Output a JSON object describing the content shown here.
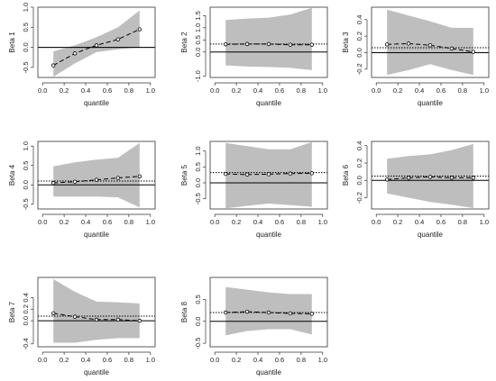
{
  "figure": {
    "background": "#ffffff",
    "band_color": "#bebebe",
    "line_color": "#000000"
  },
  "chart_data": [
    {
      "type": "line",
      "ylabel": "Beta 1",
      "xlabel": "quantile",
      "xlim": [
        0,
        1
      ],
      "ylim": [
        -0.75,
        1.0
      ],
      "xticks": [
        "0.0",
        "0.2",
        "0.4",
        "0.6",
        "0.8",
        "1.0"
      ],
      "yticks": [
        -0.5,
        0.0,
        0.5,
        1.0
      ],
      "ytick_labels": [
        "-0.5",
        "0.0",
        "0.5",
        "1.0"
      ],
      "x": [
        0.1,
        0.3,
        0.5,
        0.7,
        0.9
      ],
      "estimate": [
        -0.45,
        -0.15,
        0.05,
        0.2,
        0.45
      ],
      "band_lower": [
        -0.73,
        -0.4,
        -0.12,
        -0.05,
        0.0
      ],
      "band_upper": [
        -0.1,
        0.05,
        0.25,
        0.5,
        0.92
      ],
      "ols_estimate": 0.0,
      "zero_line": 0.0
    },
    {
      "type": "line",
      "ylabel": "Beta 2",
      "xlabel": "quantile",
      "xlim": [
        0,
        1
      ],
      "ylim": [
        -1.05,
        1.85
      ],
      "xticks": [
        "0.0",
        "0.2",
        "0.4",
        "0.6",
        "0.8",
        "1.0"
      ],
      "yticks": [
        -1.0,
        0.0,
        0.5,
        1.0,
        1.5
      ],
      "ytick_labels": [
        "-1.0",
        "0.0",
        "0.5",
        "1.0",
        "1.5"
      ],
      "x": [
        0.1,
        0.3,
        0.5,
        0.7,
        0.9
      ],
      "estimate": [
        0.32,
        0.33,
        0.33,
        0.3,
        0.3
      ],
      "band_lower": [
        -0.55,
        -0.6,
        -0.62,
        -0.65,
        -0.75
      ],
      "band_upper": [
        1.32,
        1.38,
        1.42,
        1.55,
        1.82
      ],
      "ols_estimate": 0.33,
      "zero_line": 0.0
    },
    {
      "type": "line",
      "ylabel": "Beta 3",
      "xlabel": "quantile",
      "xlim": [
        0,
        1
      ],
      "ylim": [
        -0.3,
        0.55
      ],
      "xticks": [
        "0.0",
        "0.2",
        "0.4",
        "0.6",
        "0.8",
        "1.0"
      ],
      "yticks": [
        -0.2,
        0.0,
        0.2,
        0.4
      ],
      "ytick_labels": [
        "-0.2",
        "0.0",
        "0.2",
        "0.4"
      ],
      "x": [
        0.1,
        0.3,
        0.5,
        0.7,
        0.9
      ],
      "estimate": [
        0.1,
        0.11,
        0.09,
        0.05,
        0.01
      ],
      "band_lower": [
        -0.27,
        -0.21,
        -0.14,
        -0.21,
        -0.27
      ],
      "band_upper": [
        0.52,
        0.45,
        0.38,
        0.3,
        0.3
      ],
      "ols_estimate": 0.06,
      "zero_line": 0.0
    },
    {
      "type": "line",
      "ylabel": "Beta 4",
      "xlabel": "quantile",
      "xlim": [
        0,
        1
      ],
      "ylim": [
        -0.62,
        1.12
      ],
      "xticks": [
        "0.0",
        "0.2",
        "0.4",
        "0.6",
        "0.8",
        "1.0"
      ],
      "yticks": [
        -0.5,
        0.0,
        0.5,
        1.0
      ],
      "ytick_labels": [
        "-0.5",
        "0.0",
        "0.5",
        "1.0"
      ],
      "x": [
        0.1,
        0.3,
        0.5,
        0.7,
        0.9
      ],
      "estimate": [
        0.05,
        0.08,
        0.13,
        0.18,
        0.22
      ],
      "band_lower": [
        -0.3,
        -0.3,
        -0.3,
        -0.32,
        -0.58
      ],
      "band_upper": [
        0.48,
        0.58,
        0.65,
        0.7,
        1.08
      ],
      "ols_estimate": 0.1,
      "zero_line": 0.0
    },
    {
      "type": "line",
      "ylabel": "Beta 5",
      "xlabel": "quantile",
      "xlim": [
        0,
        1
      ],
      "ylim": [
        -0.82,
        1.3
      ],
      "xticks": [
        "0.0",
        "0.2",
        "0.4",
        "0.6",
        "0.8",
        "1.0"
      ],
      "yticks": [
        -0.5,
        0.0,
        0.5,
        1.0
      ],
      "ytick_labels": [
        "-0.5",
        "0.0",
        "0.5",
        "1.0"
      ],
      "x": [
        0.1,
        0.3,
        0.5,
        0.7,
        0.9
      ],
      "estimate": [
        0.28,
        0.26,
        0.27,
        0.29,
        0.3
      ],
      "band_lower": [
        -0.8,
        -0.72,
        -0.65,
        -0.7,
        -0.75
      ],
      "band_upper": [
        1.25,
        1.15,
        1.05,
        1.05,
        1.28
      ],
      "ols_estimate": 0.32,
      "zero_line": 0.0
    },
    {
      "type": "line",
      "ylabel": "Beta 6",
      "xlabel": "quantile",
      "xlim": [
        0,
        1
      ],
      "ylim": [
        -0.33,
        0.45
      ],
      "xticks": [
        "0.0",
        "0.2",
        "0.4",
        "0.6",
        "0.8",
        "1.0"
      ],
      "yticks": [
        -0.2,
        0.0,
        0.2,
        0.4
      ],
      "ytick_labels": [
        "-0.2",
        "0.0",
        "0.2",
        "0.4"
      ],
      "x": [
        0.1,
        0.3,
        0.5,
        0.7,
        0.9
      ],
      "estimate": [
        0.01,
        0.03,
        0.04,
        0.03,
        0.03
      ],
      "band_lower": [
        -0.15,
        -0.2,
        -0.25,
        -0.28,
        -0.32
      ],
      "band_upper": [
        0.25,
        0.28,
        0.3,
        0.35,
        0.42
      ],
      "ols_estimate": 0.05,
      "zero_line": 0.0
    },
    {
      "type": "line",
      "ylabel": "Beta 7",
      "xlabel": "quantile",
      "xlim": [
        0,
        1
      ],
      "ylim": [
        -0.45,
        0.75
      ],
      "xticks": [
        "0.0",
        "0.2",
        "0.4",
        "0.6",
        "0.8",
        "1.0"
      ],
      "yticks": [
        -0.4,
        0.0,
        0.2,
        0.4
      ],
      "ytick_labels": [
        "-0.4",
        "0.0",
        "0.2",
        "0.4"
      ],
      "x": [
        0.1,
        0.3,
        0.5,
        0.7,
        0.9
      ],
      "estimate": [
        0.13,
        0.07,
        0.02,
        0.02,
        0.0
      ],
      "band_lower": [
        -0.38,
        -0.38,
        -0.33,
        -0.3,
        -0.3
      ],
      "band_upper": [
        0.72,
        0.5,
        0.33,
        0.32,
        0.3
      ],
      "ols_estimate": 0.08,
      "zero_line": 0.0
    },
    {
      "type": "line",
      "ylabel": "Beta 8",
      "xlabel": "quantile",
      "xlim": [
        0,
        1
      ],
      "ylim": [
        -0.58,
        1.0
      ],
      "xticks": [
        "0.0",
        "0.2",
        "0.4",
        "0.6",
        "0.8",
        "1.0"
      ],
      "yticks": [
        -0.5,
        0.0,
        0.5
      ],
      "ytick_labels": [
        "-0.5",
        "0.0",
        "0.5"
      ],
      "x": [
        0.1,
        0.3,
        0.5,
        0.7,
        0.9
      ],
      "estimate": [
        0.2,
        0.22,
        0.2,
        0.18,
        0.17
      ],
      "band_lower": [
        -0.32,
        -0.22,
        -0.18,
        -0.18,
        -0.3
      ],
      "band_upper": [
        0.78,
        0.72,
        0.66,
        0.62,
        0.62
      ],
      "ols_estimate": 0.2,
      "zero_line": 0.0
    }
  ]
}
